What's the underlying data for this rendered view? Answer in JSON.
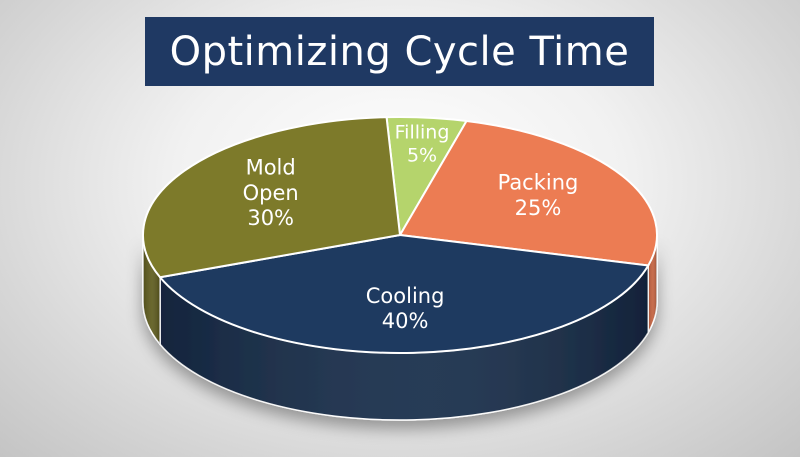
{
  "title": "Optimizing Cycle Time",
  "colors": {
    "title_bg": "#1f3963",
    "title_text": "#ffffff",
    "label_text": "#ffffff"
  },
  "chart_data": {
    "type": "pie",
    "title": "Optimizing Cycle Time",
    "style": "3d",
    "slices": [
      {
        "label": "Filling",
        "value": 5,
        "value_label": "5%",
        "color": "#b5d46c",
        "side_color": "#93ad55"
      },
      {
        "label": "Packing",
        "value": 25,
        "value_label": "25%",
        "color": "#ec7c53",
        "side_color": "#c2613f"
      },
      {
        "label": "Cooling",
        "value": 40,
        "value_label": "40%",
        "color": "#1e3a60",
        "side_color": "#152a47"
      },
      {
        "label": "Mold Open",
        "label_lines": [
          "Mold",
          "Open"
        ],
        "value": 30,
        "value_label": "30%",
        "color": "#7d7a2a",
        "side_color": "#5d5a1d"
      }
    ]
  }
}
